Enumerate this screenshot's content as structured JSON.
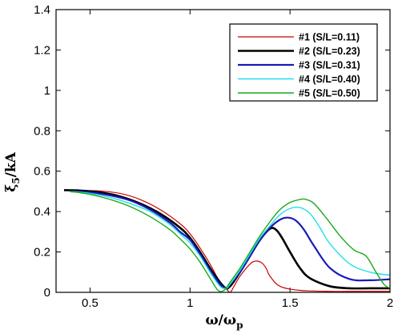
{
  "chart_data": {
    "type": "line",
    "xlabel": {
      "main": "ω/ω",
      "sub": "p"
    },
    "ylabel": {
      "main": "ξ",
      "sub": "5",
      "rest": "/kA"
    },
    "xlim": [
      0.33,
      2.0
    ],
    "ylim": [
      0,
      1.4
    ],
    "x_ticks": [
      0.5,
      1,
      1.5,
      2
    ],
    "x_tick_labels": [
      "0.5",
      "1",
      "1.5",
      "2"
    ],
    "y_ticks": [
      0,
      0.2,
      0.4,
      0.6,
      0.8,
      1,
      1.2,
      1.4
    ],
    "y_tick_labels": [
      "0",
      "0.2",
      "0.4",
      "0.6",
      "0.8",
      "1",
      "1.2",
      "1.4"
    ],
    "legend_position": "top-right",
    "series": [
      {
        "name": "#1 (S/L=0.11)",
        "color": "#cc0000",
        "line_width": 1.2,
        "x": [
          0.37,
          0.45,
          0.55,
          0.65,
          0.75,
          0.85,
          0.95,
          1.0,
          1.05,
          1.1,
          1.15,
          1.18,
          1.2,
          1.22,
          1.25,
          1.3,
          1.33,
          1.36,
          1.38,
          1.4,
          1.45,
          1.55,
          1.7,
          1.85,
          2.0
        ],
        "y": [
          0.507,
          0.505,
          0.502,
          0.49,
          0.46,
          0.41,
          0.34,
          0.29,
          0.22,
          0.14,
          0.05,
          0.02,
          0.0,
          0.03,
          0.08,
          0.14,
          0.155,
          0.145,
          0.12,
          0.08,
          0.03,
          0.01,
          0.005,
          0.005,
          0.005
        ]
      },
      {
        "name": "#2 (S/L=0.23)",
        "color": "#000000",
        "line_width": 2.6,
        "x": [
          0.37,
          0.45,
          0.55,
          0.65,
          0.75,
          0.85,
          0.95,
          1.0,
          1.05,
          1.1,
          1.15,
          1.18,
          1.2,
          1.22,
          1.25,
          1.3,
          1.35,
          1.4,
          1.43,
          1.46,
          1.5,
          1.55,
          1.6,
          1.7,
          1.8,
          1.9,
          2.0
        ],
        "y": [
          0.506,
          0.504,
          0.495,
          0.475,
          0.44,
          0.39,
          0.32,
          0.27,
          0.2,
          0.12,
          0.05,
          0.02,
          0.03,
          0.055,
          0.1,
          0.18,
          0.26,
          0.315,
          0.31,
          0.27,
          0.2,
          0.12,
          0.07,
          0.03,
          0.02,
          0.02,
          0.02
        ]
      },
      {
        "name": "#3 (S/L=0.31)",
        "color": "#1a1ab8",
        "line_width": 2.2,
        "x": [
          0.4,
          0.5,
          0.6,
          0.7,
          0.8,
          0.9,
          0.95,
          1.0,
          1.05,
          1.1,
          1.15,
          1.18,
          1.2,
          1.25,
          1.3,
          1.35,
          1.4,
          1.45,
          1.49,
          1.53,
          1.57,
          1.62,
          1.7,
          1.8,
          1.9,
          2.0
        ],
        "y": [
          0.5,
          0.495,
          0.48,
          0.455,
          0.41,
          0.345,
          0.3,
          0.26,
          0.19,
          0.11,
          0.04,
          0.02,
          0.04,
          0.1,
          0.18,
          0.26,
          0.32,
          0.36,
          0.37,
          0.355,
          0.31,
          0.23,
          0.12,
          0.065,
          0.06,
          0.065
        ]
      },
      {
        "name": "#4 (S/L=0.40)",
        "color": "#22e0e8",
        "line_width": 1.4,
        "x": [
          0.4,
          0.5,
          0.6,
          0.7,
          0.8,
          0.9,
          0.95,
          1.0,
          1.05,
          1.1,
          1.15,
          1.18,
          1.2,
          1.25,
          1.3,
          1.35,
          1.4,
          1.45,
          1.5,
          1.55,
          1.6,
          1.65,
          1.7,
          1.8,
          1.9,
          2.0
        ],
        "y": [
          0.5,
          0.49,
          0.47,
          0.44,
          0.4,
          0.335,
          0.29,
          0.245,
          0.18,
          0.1,
          0.03,
          0.02,
          0.04,
          0.11,
          0.19,
          0.27,
          0.33,
          0.385,
          0.415,
          0.42,
          0.39,
          0.32,
          0.24,
          0.14,
          0.1,
          0.085
        ]
      },
      {
        "name": "#5 (S/L=0.50)",
        "color": "#18aa18",
        "line_width": 1.4,
        "x": [
          0.4,
          0.5,
          0.6,
          0.7,
          0.8,
          0.9,
          0.95,
          1.0,
          1.05,
          1.1,
          1.14,
          1.17,
          1.2,
          1.25,
          1.3,
          1.35,
          1.4,
          1.45,
          1.5,
          1.55,
          1.58,
          1.62,
          1.68,
          1.75,
          1.82,
          1.88,
          1.93,
          1.97,
          2.0
        ],
        "y": [
          0.5,
          0.485,
          0.46,
          0.425,
          0.375,
          0.31,
          0.265,
          0.215,
          0.15,
          0.07,
          0.01,
          0.01,
          0.05,
          0.12,
          0.2,
          0.28,
          0.35,
          0.41,
          0.445,
          0.46,
          0.46,
          0.44,
          0.37,
          0.28,
          0.21,
          0.18,
          0.1,
          0.04,
          0.02
        ]
      }
    ]
  }
}
